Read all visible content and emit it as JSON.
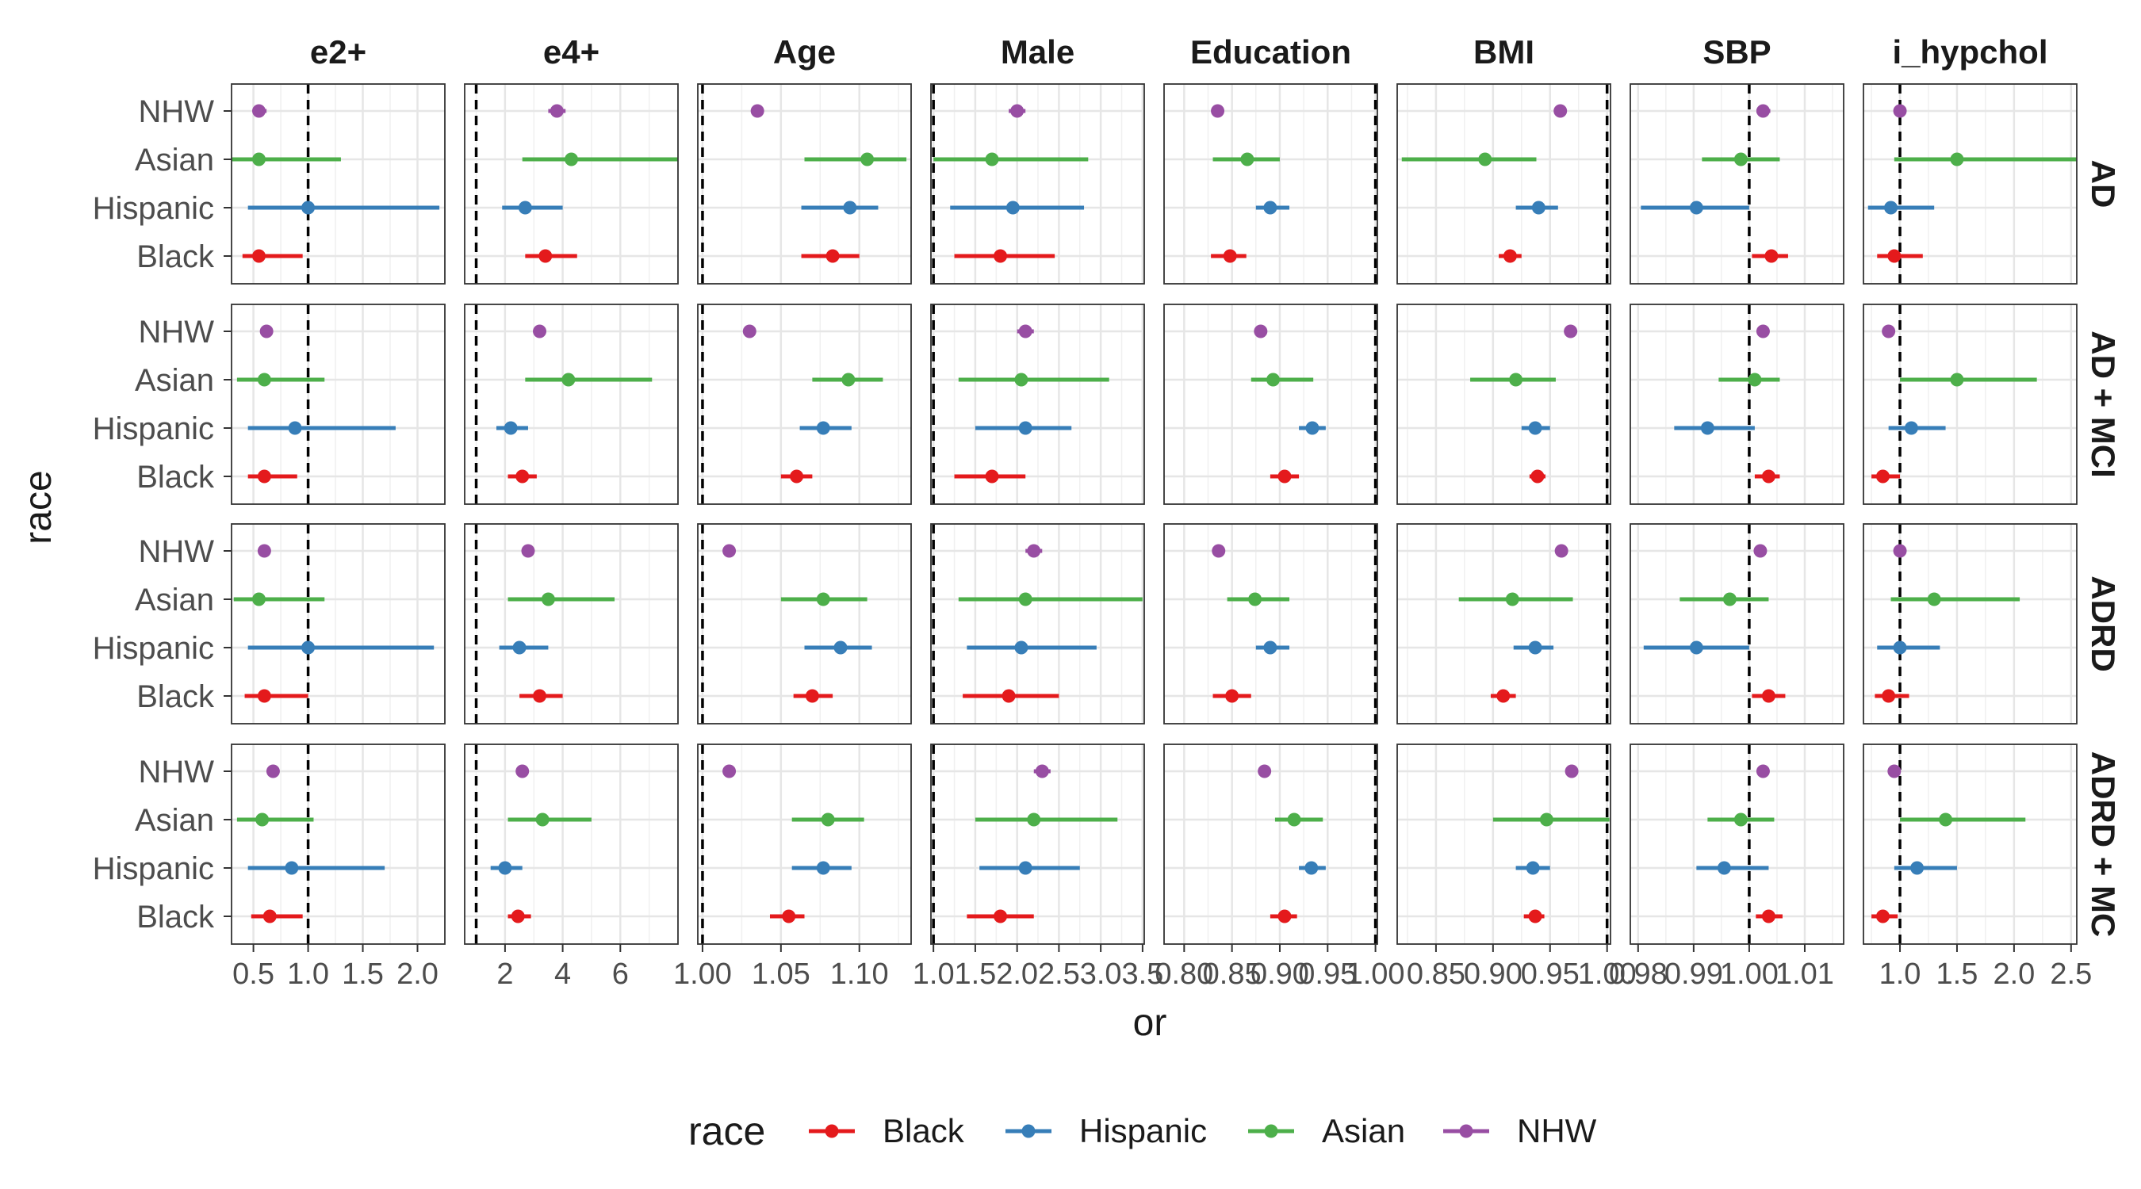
{
  "chart_data": {
    "type": "forest",
    "xlabel": "or",
    "ylabel": "race",
    "facet_columns": [
      "e2+",
      "e4+",
      "Age",
      "Male",
      "Education",
      "BMI",
      "SBP",
      "i_hypchol"
    ],
    "facet_rows": [
      "AD",
      "AD + MCI",
      "ADRD",
      "ADRD + MC"
    ],
    "categories": [
      "NHW",
      "Asian",
      "Hispanic",
      "Black"
    ],
    "reference_line": 1.0,
    "legend": {
      "title": "race",
      "position": "bottom",
      "entries": [
        {
          "name": "Black",
          "color": "#e41a1c"
        },
        {
          "name": "Hispanic",
          "color": "#377eb8"
        },
        {
          "name": "Asian",
          "color": "#4daf4a"
        },
        {
          "name": "NHW",
          "color": "#984ea3"
        }
      ]
    },
    "columns": [
      {
        "name": "e2+",
        "xlim": [
          0.3,
          2.25
        ],
        "ticks": [
          0.5,
          1.0,
          1.5,
          2.0
        ],
        "tick_labels": [
          "0.5",
          "1.0",
          "1.5",
          "2.0"
        ]
      },
      {
        "name": "e4+",
        "xlim": [
          0.6,
          8.0
        ],
        "ticks": [
          2,
          4,
          6
        ],
        "tick_labels": [
          "2",
          "4",
          "6"
        ]
      },
      {
        "name": "Age",
        "xlim": [
          0.997,
          1.133
        ],
        "ticks": [
          1.0,
          1.05,
          1.1
        ],
        "tick_labels": [
          "1.00",
          "1.05",
          "1.10"
        ]
      },
      {
        "name": "Male",
        "xlim": [
          0.97,
          3.52
        ],
        "ticks": [
          1.0,
          1.5,
          2.0,
          2.5,
          3.0,
          3.5
        ],
        "tick_labels": [
          "1.0",
          "1.5",
          "2.0",
          "2.5",
          "3.0",
          "3.5"
        ]
      },
      {
        "name": "Education",
        "xlim": [
          0.779,
          1.002
        ],
        "ticks": [
          0.8,
          0.85,
          0.9,
          0.95,
          1.0
        ],
        "tick_labels": [
          "0.80",
          "0.85",
          "0.90",
          "0.95",
          "1.00"
        ]
      },
      {
        "name": "BMI",
        "xlim": [
          0.816,
          1.003
        ],
        "ticks": [
          0.85,
          0.9,
          0.95,
          1.0
        ],
        "tick_labels": [
          "0.85",
          "0.90",
          "0.95",
          "1.00"
        ]
      },
      {
        "name": "SBP",
        "xlim": [
          0.9786,
          1.017
        ],
        "ticks": [
          0.98,
          0.99,
          1.0,
          1.01
        ],
        "tick_labels": [
          "0.98",
          "0.99",
          "1.00",
          "1.01"
        ]
      },
      {
        "name": "i_hypchol",
        "xlim": [
          0.68,
          2.55
        ],
        "ticks": [
          1.0,
          1.5,
          2.0,
          2.5
        ],
        "tick_labels": [
          "1.0",
          "1.5",
          "2.0",
          "2.5"
        ]
      }
    ],
    "estimates": {
      "AD": {
        "e2+": {
          "NHW": [
            0.55,
            0.5,
            0.62
          ],
          "Asian": [
            0.55,
            0.3,
            1.3
          ],
          "Hispanic": [
            1.0,
            0.45,
            2.2
          ],
          "Black": [
            0.55,
            0.4,
            0.95
          ]
        },
        "e4+": {
          "NHW": [
            3.8,
            3.5,
            4.1
          ],
          "Asian": [
            4.3,
            2.6,
            8.0
          ],
          "Hispanic": [
            2.7,
            1.9,
            4.0
          ],
          "Black": [
            3.4,
            2.7,
            4.5
          ]
        },
        "Age": {
          "NHW": [
            1.035,
            1.035,
            1.035
          ],
          "Asian": [
            1.105,
            1.065,
            1.13
          ],
          "Hispanic": [
            1.094,
            1.063,
            1.112
          ],
          "Black": [
            1.083,
            1.063,
            1.1
          ]
        },
        "Male": {
          "NHW": [
            2.0,
            1.9,
            2.1
          ],
          "Asian": [
            1.7,
            1.0,
            2.85
          ],
          "Hispanic": [
            1.95,
            1.2,
            2.8
          ],
          "Black": [
            1.8,
            1.25,
            2.45
          ]
        },
        "Education": {
          "NHW": [
            0.835,
            0.83,
            0.84
          ],
          "Asian": [
            0.866,
            0.83,
            0.9
          ],
          "Hispanic": [
            0.89,
            0.875,
            0.91
          ],
          "Black": [
            0.848,
            0.828,
            0.865
          ]
        },
        "BMI": {
          "NHW": [
            0.959,
            0.955,
            0.963
          ],
          "Asian": [
            0.893,
            0.82,
            0.938
          ],
          "Hispanic": [
            0.94,
            0.92,
            0.957
          ],
          "Black": [
            0.915,
            0.905,
            0.925
          ]
        },
        "SBP": {
          "NHW": [
            1.0025,
            1.0013,
            1.0038
          ],
          "Asian": [
            0.9985,
            0.9915,
            1.0055
          ],
          "Hispanic": [
            0.9905,
            0.9805,
            1.0
          ],
          "Black": [
            1.004,
            1.0005,
            1.007
          ]
        },
        "i_hypchol": {
          "NHW": [
            1.0,
            0.98,
            1.04
          ],
          "Asian": [
            1.5,
            0.95,
            2.55
          ],
          "Hispanic": [
            0.92,
            0.72,
            1.3
          ],
          "Black": [
            0.95,
            0.8,
            1.2
          ]
        }
      },
      "AD + MCI": {
        "e2+": {
          "NHW": [
            0.62,
            0.57,
            0.67
          ],
          "Asian": [
            0.6,
            0.35,
            1.15
          ],
          "Hispanic": [
            0.88,
            0.45,
            1.8
          ],
          "Black": [
            0.6,
            0.45,
            0.9
          ]
        },
        "e4+": {
          "NHW": [
            3.2,
            3.0,
            3.4
          ],
          "Asian": [
            4.2,
            2.7,
            7.1
          ],
          "Hispanic": [
            2.2,
            1.7,
            2.8
          ],
          "Black": [
            2.6,
            2.1,
            3.1
          ]
        },
        "Age": {
          "NHW": [
            1.03,
            1.03,
            1.03
          ],
          "Asian": [
            1.093,
            1.07,
            1.115
          ],
          "Hispanic": [
            1.077,
            1.062,
            1.095
          ],
          "Black": [
            1.06,
            1.05,
            1.07
          ]
        },
        "Male": {
          "NHW": [
            2.1,
            2.0,
            2.2
          ],
          "Asian": [
            2.05,
            1.3,
            3.1
          ],
          "Hispanic": [
            2.1,
            1.5,
            2.65
          ],
          "Black": [
            1.7,
            1.25,
            2.1
          ]
        },
        "Education": {
          "NHW": [
            0.88,
            0.875,
            0.885
          ],
          "Asian": [
            0.893,
            0.87,
            0.935
          ],
          "Hispanic": [
            0.934,
            0.92,
            0.948
          ],
          "Black": [
            0.905,
            0.89,
            0.92
          ]
        },
        "BMI": {
          "NHW": [
            0.968,
            0.965,
            0.971
          ],
          "Asian": [
            0.92,
            0.88,
            0.955
          ],
          "Hispanic": [
            0.937,
            0.925,
            0.95
          ],
          "Black": [
            0.939,
            0.932,
            0.946
          ]
        },
        "SBP": {
          "NHW": [
            1.0025,
            1.0015,
            1.0035
          ],
          "Asian": [
            1.001,
            0.9945,
            1.0055
          ],
          "Hispanic": [
            0.9925,
            0.9865,
            1.001
          ],
          "Black": [
            1.0035,
            1.001,
            1.0055
          ]
        },
        "i_hypchol": {
          "NHW": [
            0.9,
            0.88,
            0.93
          ],
          "Asian": [
            1.5,
            1.0,
            2.2
          ],
          "Hispanic": [
            1.1,
            0.9,
            1.4
          ],
          "Black": [
            0.85,
            0.75,
            1.0
          ]
        }
      },
      "ADRD": {
        "e2+": {
          "NHW": [
            0.6,
            0.55,
            0.65
          ],
          "Asian": [
            0.55,
            0.32,
            1.15
          ],
          "Hispanic": [
            1.0,
            0.45,
            2.15
          ],
          "Black": [
            0.6,
            0.42,
            1.0
          ]
        },
        "e4+": {
          "NHW": [
            2.8,
            2.7,
            2.9
          ],
          "Asian": [
            3.5,
            2.1,
            5.8
          ],
          "Hispanic": [
            2.5,
            1.8,
            3.5
          ],
          "Black": [
            3.2,
            2.5,
            4.0
          ]
        },
        "Age": {
          "NHW": [
            1.017,
            1.017,
            1.017
          ],
          "Asian": [
            1.077,
            1.05,
            1.105
          ],
          "Hispanic": [
            1.088,
            1.065,
            1.108
          ],
          "Black": [
            1.07,
            1.058,
            1.083
          ]
        },
        "Male": {
          "NHW": [
            2.2,
            2.1,
            2.3
          ],
          "Asian": [
            2.1,
            1.3,
            3.5
          ],
          "Hispanic": [
            2.05,
            1.4,
            2.95
          ],
          "Black": [
            1.9,
            1.35,
            2.5
          ]
        },
        "Education": {
          "NHW": [
            0.836,
            0.83,
            0.842
          ],
          "Asian": [
            0.874,
            0.845,
            0.91
          ],
          "Hispanic": [
            0.89,
            0.875,
            0.91
          ],
          "Black": [
            0.85,
            0.83,
            0.87
          ]
        },
        "BMI": {
          "NHW": [
            0.96,
            0.956,
            0.963
          ],
          "Asian": [
            0.917,
            0.87,
            0.97
          ],
          "Hispanic": [
            0.937,
            0.918,
            0.953
          ],
          "Black": [
            0.909,
            0.898,
            0.92
          ]
        },
        "SBP": {
          "NHW": [
            1.002,
            1.0012,
            1.003
          ],
          "Asian": [
            0.9965,
            0.9875,
            1.0035
          ],
          "Hispanic": [
            0.9905,
            0.981,
            1.0
          ],
          "Black": [
            1.0035,
            1.0005,
            1.0065
          ]
        },
        "i_hypchol": {
          "NHW": [
            1.0,
            0.98,
            1.03
          ],
          "Asian": [
            1.3,
            0.92,
            2.05
          ],
          "Hispanic": [
            1.0,
            0.8,
            1.35
          ],
          "Black": [
            0.9,
            0.78,
            1.08
          ]
        }
      },
      "ADRD + MC": {
        "e2+": {
          "NHW": [
            0.68,
            0.63,
            0.72
          ],
          "Asian": [
            0.58,
            0.35,
            1.05
          ],
          "Hispanic": [
            0.85,
            0.45,
            1.7
          ],
          "Black": [
            0.65,
            0.48,
            0.95
          ]
        },
        "e4+": {
          "NHW": [
            2.6,
            2.45,
            2.75
          ],
          "Asian": [
            3.3,
            2.1,
            5.0
          ],
          "Hispanic": [
            2.0,
            1.5,
            2.6
          ],
          "Black": [
            2.45,
            2.1,
            2.9
          ]
        },
        "Age": {
          "NHW": [
            1.017,
            1.017,
            1.017
          ],
          "Asian": [
            1.08,
            1.057,
            1.103
          ],
          "Hispanic": [
            1.077,
            1.057,
            1.095
          ],
          "Black": [
            1.055,
            1.043,
            1.065
          ]
        },
        "Male": {
          "NHW": [
            2.3,
            2.2,
            2.4
          ],
          "Asian": [
            2.2,
            1.5,
            3.2
          ],
          "Hispanic": [
            2.1,
            1.55,
            2.75
          ],
          "Black": [
            1.8,
            1.4,
            2.2
          ]
        },
        "Education": {
          "NHW": [
            0.884,
            0.878,
            0.89
          ],
          "Asian": [
            0.915,
            0.895,
            0.945
          ],
          "Hispanic": [
            0.933,
            0.92,
            0.948
          ],
          "Black": [
            0.905,
            0.89,
            0.918
          ]
        },
        "BMI": {
          "NHW": [
            0.969,
            0.966,
            0.972
          ],
          "Asian": [
            0.947,
            0.9,
            1.002
          ],
          "Hispanic": [
            0.935,
            0.92,
            0.95
          ],
          "Black": [
            0.937,
            0.927,
            0.945
          ]
        },
        "SBP": {
          "NHW": [
            1.0025,
            1.0015,
            1.0035
          ],
          "Asian": [
            0.9985,
            0.9925,
            1.0045
          ],
          "Hispanic": [
            0.9955,
            0.9905,
            1.0035
          ],
          "Black": [
            1.0035,
            1.0012,
            1.006
          ]
        },
        "i_hypchol": {
          "NHW": [
            0.95,
            0.93,
            0.98
          ],
          "Asian": [
            1.4,
            1.0,
            2.1
          ],
          "Hispanic": [
            1.15,
            0.95,
            1.5
          ],
          "Black": [
            0.85,
            0.75,
            0.98
          ]
        }
      }
    }
  }
}
